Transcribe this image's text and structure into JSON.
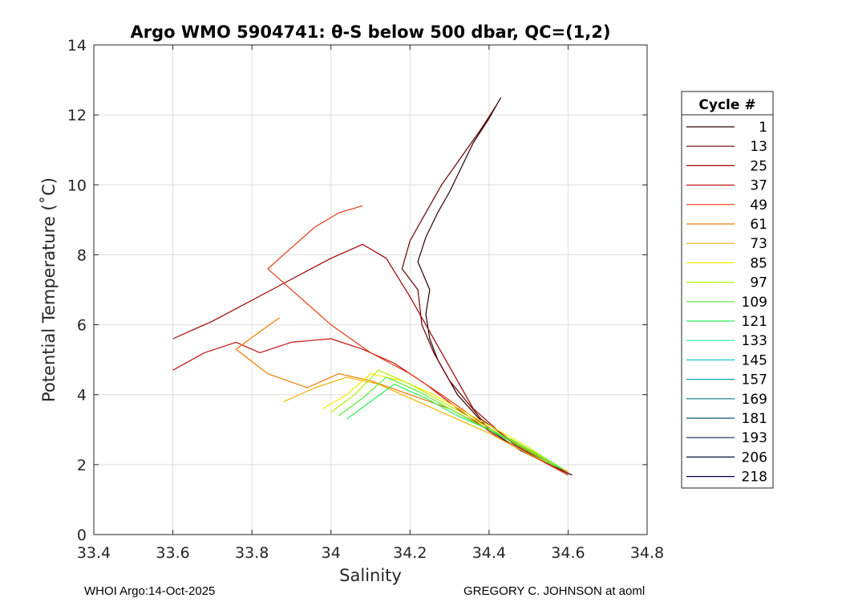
{
  "chart_data": {
    "type": "line",
    "title": "Argo WMO 5904741: θ-S below 500 dbar,  QC=(1,2)",
    "xlabel": "Salinity",
    "ylabel": "Potential Temperature (˚C)",
    "xlim": [
      33.4,
      34.8
    ],
    "ylim": [
      0,
      14
    ],
    "xticks": [
      33.4,
      33.6,
      33.8,
      34,
      34.2,
      34.4,
      34.6,
      34.8
    ],
    "xtick_labels": [
      "33.4",
      "33.6",
      "33.8",
      "34",
      "34.2",
      "34.4",
      "34.6",
      "34.8"
    ],
    "yticks": [
      0,
      2,
      4,
      6,
      8,
      10,
      12,
      14
    ],
    "ytick_labels": [
      "0",
      "2",
      "4",
      "6",
      "8",
      "10",
      "12",
      "14"
    ],
    "grid": true,
    "legend": {
      "title": "Cycle #",
      "placement": "right",
      "entries": [
        {
          "label": "1",
          "color": "#2a0000"
        },
        {
          "label": "13",
          "color": "#6a0000"
        },
        {
          "label": "25",
          "color": "#9e0000"
        },
        {
          "label": "37",
          "color": "#c81010"
        },
        {
          "label": "49",
          "color": "#e63a10"
        },
        {
          "label": "61",
          "color": "#ee7a00"
        },
        {
          "label": "73",
          "color": "#f0b400"
        },
        {
          "label": "85",
          "color": "#f5ec00"
        },
        {
          "label": "97",
          "color": "#b4f000"
        },
        {
          "label": "109",
          "color": "#58ee30"
        },
        {
          "label": "121",
          "color": "#28ee58"
        },
        {
          "label": "133",
          "color": "#18e8a0"
        },
        {
          "label": "145",
          "color": "#10cccc"
        },
        {
          "label": "157",
          "color": "#0aa4ae"
        },
        {
          "label": "169",
          "color": "#087c96"
        },
        {
          "label": "181",
          "color": "#0a5478"
        },
        {
          "label": "193",
          "color": "#082e52"
        },
        {
          "label": "206",
          "color": "#04123a"
        },
        {
          "label": "218",
          "color": "#000050"
        }
      ]
    },
    "series": [
      {
        "name": "cycle 1 (upper branch)",
        "color": "#2a0000",
        "x": [
          34.43,
          34.4,
          34.36,
          34.33,
          34.3,
          34.27,
          34.24,
          34.22,
          34.25,
          34.24,
          34.25,
          34.27,
          34.32,
          34.4,
          34.48,
          34.61
        ],
        "y": [
          12.5,
          11.9,
          11.2,
          10.5,
          9.8,
          9.2,
          8.5,
          7.8,
          7.0,
          6.3,
          5.6,
          5.0,
          4.0,
          3.0,
          2.4,
          1.7
        ]
      },
      {
        "name": "cycle 13",
        "color": "#6a0000",
        "x": [
          34.42,
          34.38,
          34.33,
          34.28,
          34.24,
          34.2,
          34.18,
          34.22,
          34.23,
          34.26,
          34.3,
          34.38,
          34.48,
          34.6
        ],
        "y": [
          12.3,
          11.6,
          10.8,
          10.0,
          9.2,
          8.4,
          7.6,
          7.0,
          6.0,
          5.2,
          4.4,
          3.3,
          2.5,
          1.75
        ]
      },
      {
        "name": "cycle 25",
        "color": "#9e0000",
        "x": [
          33.6,
          33.7,
          33.8,
          33.9,
          34.0,
          34.08,
          34.14,
          34.2,
          34.28,
          34.36,
          34.46,
          34.6
        ],
        "y": [
          5.6,
          6.1,
          6.7,
          7.3,
          7.9,
          8.3,
          7.9,
          6.8,
          5.2,
          3.6,
          2.6,
          1.7
        ]
      },
      {
        "name": "cycle 37",
        "color": "#c81010",
        "x": [
          33.6,
          33.68,
          33.76,
          33.82,
          33.9,
          34.0,
          34.08,
          34.16,
          34.24,
          34.32,
          34.42,
          34.6
        ],
        "y": [
          4.7,
          5.2,
          5.5,
          5.2,
          5.5,
          5.6,
          5.3,
          4.9,
          4.3,
          3.6,
          2.8,
          1.7
        ]
      },
      {
        "name": "cycle 49",
        "color": "#e63a10",
        "x": [
          34.08,
          34.02,
          33.96,
          33.9,
          33.84,
          33.92,
          34.0,
          34.1,
          34.2,
          34.28,
          34.38,
          34.48,
          34.6
        ],
        "y": [
          9.4,
          9.2,
          8.8,
          8.2,
          7.6,
          6.8,
          6.0,
          5.2,
          4.6,
          4.0,
          3.2,
          2.5,
          1.7
        ]
      },
      {
        "name": "cycle 61",
        "color": "#ee7a00",
        "x": [
          33.87,
          33.82,
          33.76,
          33.84,
          33.94,
          34.02,
          34.1,
          34.2,
          34.3,
          34.4,
          34.5,
          34.6
        ],
        "y": [
          6.2,
          5.8,
          5.3,
          4.6,
          4.2,
          4.6,
          4.4,
          4.0,
          3.6,
          3.0,
          2.4,
          1.8
        ]
      },
      {
        "name": "cycle 73",
        "color": "#f0b400",
        "x": [
          33.88,
          33.96,
          34.04,
          34.12,
          34.2,
          34.3,
          34.4,
          34.5,
          34.6
        ],
        "y": [
          3.8,
          4.2,
          4.5,
          4.3,
          3.9,
          3.4,
          2.9,
          2.3,
          1.8
        ]
      },
      {
        "name": "cycle 85",
        "color": "#f5ec00",
        "x": [
          33.98,
          34.04,
          34.1,
          34.18,
          34.26,
          34.34,
          34.42,
          34.5,
          34.58
        ],
        "y": [
          3.6,
          4.0,
          4.6,
          4.4,
          4.0,
          3.5,
          3.0,
          2.5,
          1.9
        ]
      },
      {
        "name": "cycle 97",
        "color": "#b4f000",
        "x": [
          34.0,
          34.06,
          34.12,
          34.2,
          34.28,
          34.36,
          34.44,
          34.52,
          34.59
        ],
        "y": [
          3.5,
          4.0,
          4.7,
          4.3,
          3.8,
          3.3,
          2.8,
          2.3,
          1.85
        ]
      },
      {
        "name": "cycle 109",
        "color": "#58ee30",
        "x": [
          34.02,
          34.08,
          34.14,
          34.22,
          34.3,
          34.38,
          34.46,
          34.54,
          34.59
        ],
        "y": [
          3.4,
          3.9,
          4.5,
          4.1,
          3.6,
          3.1,
          2.7,
          2.2,
          1.85
        ]
      },
      {
        "name": "cycle 121",
        "color": "#28ee58",
        "x": [
          34.04,
          34.1,
          34.16,
          34.24,
          34.32,
          34.4,
          34.48,
          34.56,
          34.58
        ],
        "y": [
          3.3,
          3.8,
          4.3,
          3.9,
          3.4,
          3.0,
          2.5,
          2.0,
          1.9
        ]
      }
    ]
  },
  "footer": {
    "left": "WHOI Argo:14-Oct-2025",
    "right": "GREGORY C. JOHNSON at aoml"
  }
}
